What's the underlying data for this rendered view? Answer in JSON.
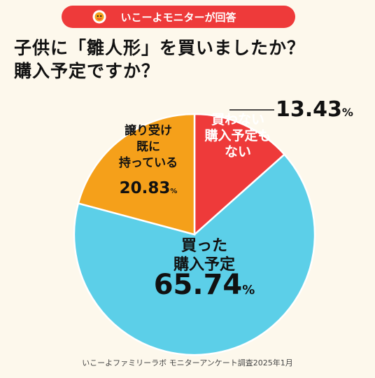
{
  "header": {
    "badge_text": "いこーよモニターが回答",
    "title_line1": "子供に「雛人形」を買いましたか？",
    "title_line2": "購入予定ですか？"
  },
  "chart_data": {
    "type": "pie",
    "title": "子供に「雛人形」を買いましたか？購入予定ですか？",
    "unit": "%",
    "slices": [
      {
        "label_lines": [
          "買わない",
          "購入予定も",
          "ない"
        ],
        "value": 13.43,
        "value_text": "13.43",
        "color": "#ee3a3a"
      },
      {
        "label_lines": [
          "買った",
          "購入予定"
        ],
        "value": 65.74,
        "value_text": "65.74",
        "color": "#5ccfe8"
      },
      {
        "label_lines": [
          "譲り受け",
          "既に",
          "持っている"
        ],
        "value": 20.83,
        "value_text": "20.83",
        "color": "#f5a01a"
      }
    ]
  },
  "footer": {
    "source": "いこーよファミリーラボ モニターアンケート調査2025年1月"
  },
  "colors": {
    "background": "#fdf8ec",
    "badge": "#ee3a3a"
  }
}
